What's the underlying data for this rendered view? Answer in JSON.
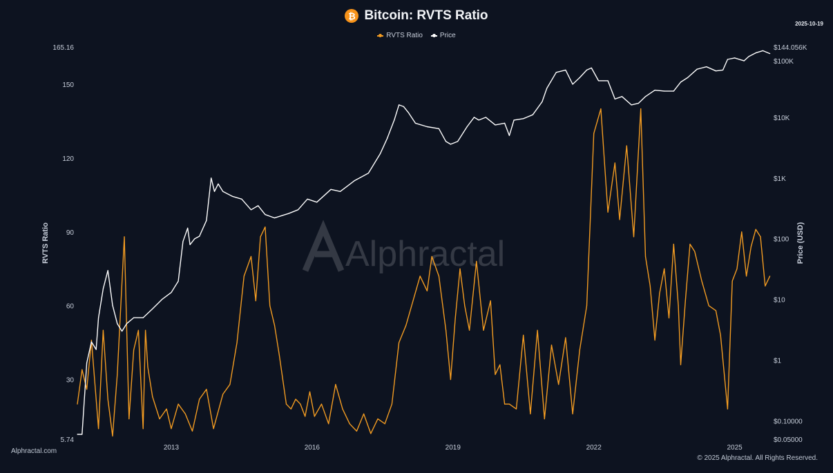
{
  "colors": {
    "background": "#0d1320",
    "rvts": "#f39c22",
    "price": "#ffffff",
    "btc_badge": "#f7931a"
  },
  "header": {
    "title": "Bitcoin: RVTS Ratio",
    "date": "2025-10-19",
    "btc_symbol": "₿"
  },
  "legend": [
    {
      "label": "RVTS Ratio"
    },
    {
      "label": "Price"
    }
  ],
  "watermark": "Alphractal",
  "footer": {
    "site": "Alphractal.com",
    "copyright": "© 2025 Alphractal. All Rights Reserved."
  },
  "chart_data": {
    "type": "line",
    "title": "Bitcoin: RVTS Ratio",
    "xlabel": "",
    "ylabel_left": "RVTS Ratio",
    "ylabel_right": "Price (USD)",
    "x_range": [
      2011.0,
      2025.8
    ],
    "x_ticks": [
      {
        "value": 2013,
        "label": "2013"
      },
      {
        "value": 2016,
        "label": "2016"
      },
      {
        "value": 2019,
        "label": "2019"
      },
      {
        "value": 2022,
        "label": "2022"
      },
      {
        "value": 2025,
        "label": "2025"
      }
    ],
    "y_left": {
      "range": [
        5.74,
        165.16
      ],
      "ticks": [
        {
          "value": 5.74,
          "label": "5.74"
        },
        {
          "value": 30,
          "label": "30"
        },
        {
          "value": 60,
          "label": "60"
        },
        {
          "value": 90,
          "label": "90"
        },
        {
          "value": 120,
          "label": "120"
        },
        {
          "value": 150,
          "label": "150"
        },
        {
          "value": 165.16,
          "label": "165.16"
        }
      ]
    },
    "y_right": {
      "scale": "log",
      "range": [
        0.05,
        144056
      ],
      "ticks": [
        {
          "value": 0.05,
          "label": "$0.05000"
        },
        {
          "value": 0.1,
          "label": "$0.10000"
        },
        {
          "value": 1,
          "label": "$1"
        },
        {
          "value": 10,
          "label": "$10"
        },
        {
          "value": 100,
          "label": "$100"
        },
        {
          "value": 1000,
          "label": "$1K"
        },
        {
          "value": 10000,
          "label": "$10K"
        },
        {
          "value": 100000,
          "label": "$100K"
        },
        {
          "value": 144056,
          "label": "$144.056K"
        }
      ]
    },
    "series": [
      {
        "name": "RVTS Ratio",
        "axis": "left",
        "x": [
          2011.0,
          2011.1,
          2011.2,
          2011.3,
          2011.45,
          2011.55,
          2011.65,
          2011.75,
          2011.85,
          2012.0,
          2012.1,
          2012.2,
          2012.3,
          2012.4,
          2012.45,
          2012.5,
          2012.6,
          2012.75,
          2012.9,
          2013.0,
          2013.15,
          2013.3,
          2013.45,
          2013.6,
          2013.75,
          2013.9,
          2014.1,
          2014.25,
          2014.4,
          2014.55,
          2014.7,
          2014.8,
          2014.9,
          2015.0,
          2015.1,
          2015.2,
          2015.3,
          2015.45,
          2015.55,
          2015.65,
          2015.75,
          2015.85,
          2015.95,
          2016.05,
          2016.2,
          2016.35,
          2016.5,
          2016.65,
          2016.8,
          2016.95,
          2017.1,
          2017.25,
          2017.4,
          2017.55,
          2017.7,
          2017.85,
          2018.0,
          2018.15,
          2018.3,
          2018.45,
          2018.55,
          2018.7,
          2018.85,
          2018.95,
          2019.05,
          2019.15,
          2019.25,
          2019.35,
          2019.5,
          2019.65,
          2019.8,
          2019.9,
          2020.0,
          2020.1,
          2020.2,
          2020.35,
          2020.5,
          2020.65,
          2020.8,
          2020.95,
          2021.1,
          2021.25,
          2021.4,
          2021.55,
          2021.7,
          2021.85,
          2022.0,
          2022.15,
          2022.3,
          2022.45,
          2022.55,
          2022.7,
          2022.85,
          2023.0,
          2023.1,
          2023.2,
          2023.3,
          2023.4,
          2023.5,
          2023.6,
          2023.7,
          2023.8,
          2023.85,
          2023.95,
          2024.05,
          2024.15,
          2024.3,
          2024.45,
          2024.6,
          2024.7,
          2024.85,
          2024.95,
          2025.05,
          2025.15,
          2025.25,
          2025.35,
          2025.45,
          2025.55,
          2025.65,
          2025.75
        ],
        "values": [
          20,
          34,
          26,
          46,
          10,
          50,
          22,
          7,
          32,
          88,
          14,
          42,
          50,
          10,
          50,
          35,
          23,
          14,
          18,
          10,
          20,
          16,
          9,
          22,
          26,
          10,
          24,
          28,
          45,
          72,
          80,
          62,
          88,
          92,
          60,
          52,
          40,
          20,
          18,
          22,
          20,
          15,
          25,
          15,
          20,
          12,
          28,
          18,
          12,
          9,
          16,
          8,
          14,
          12,
          20,
          45,
          52,
          62,
          72,
          66,
          80,
          72,
          50,
          30,
          55,
          75,
          60,
          50,
          78,
          50,
          62,
          32,
          36,
          20,
          20,
          18,
          48,
          16,
          50,
          14,
          44,
          28,
          47,
          16,
          42,
          60,
          130,
          140,
          98,
          118,
          95,
          125,
          88,
          140,
          80,
          68,
          46,
          65,
          75,
          55,
          85,
          60,
          36,
          62,
          85,
          82,
          70,
          60,
          58,
          48,
          18,
          70,
          75,
          90,
          72,
          84,
          91,
          88,
          68,
          72
        ]
      },
      {
        "name": "Price",
        "axis": "right",
        "x": [
          2011.0,
          2011.1,
          2011.2,
          2011.3,
          2011.4,
          2011.45,
          2011.55,
          2011.65,
          2011.75,
          2011.85,
          2011.95,
          2012.05,
          2012.2,
          2012.4,
          2012.6,
          2012.8,
          2013.0,
          2013.15,
          2013.25,
          2013.35,
          2013.4,
          2013.5,
          2013.6,
          2013.75,
          2013.85,
          2013.92,
          2014.0,
          2014.1,
          2014.3,
          2014.5,
          2014.7,
          2014.85,
          2015.0,
          2015.2,
          2015.5,
          2015.7,
          2015.9,
          2016.1,
          2016.4,
          2016.6,
          2016.9,
          2017.2,
          2017.45,
          2017.6,
          2017.75,
          2017.85,
          2017.95,
          2018.05,
          2018.2,
          2018.45,
          2018.7,
          2018.85,
          2018.95,
          2019.1,
          2019.3,
          2019.45,
          2019.55,
          2019.7,
          2019.9,
          2020.1,
          2020.2,
          2020.3,
          2020.5,
          2020.7,
          2020.9,
          2021.0,
          2021.2,
          2021.4,
          2021.55,
          2021.7,
          2021.85,
          2021.95,
          2022.1,
          2022.3,
          2022.45,
          2022.6,
          2022.8,
          2022.95,
          2023.1,
          2023.3,
          2023.5,
          2023.7,
          2023.85,
          2024.0,
          2024.2,
          2024.4,
          2024.6,
          2024.75,
          2024.85,
          2025.0,
          2025.2,
          2025.3,
          2025.45,
          2025.6,
          2025.75
        ],
        "values": [
          0.06,
          0.06,
          0.9,
          2,
          1.5,
          5,
          15,
          30,
          8,
          4,
          3,
          4,
          5,
          5,
          7,
          10,
          13,
          20,
          90,
          150,
          80,
          100,
          110,
          200,
          1000,
          600,
          800,
          600,
          500,
          450,
          300,
          350,
          250,
          220,
          260,
          300,
          450,
          400,
          650,
          600,
          900,
          1200,
          2500,
          4500,
          9000,
          16000,
          15000,
          12000,
          8000,
          7000,
          6500,
          4000,
          3600,
          4000,
          7000,
          10000,
          9000,
          10000,
          7500,
          8000,
          5000,
          9000,
          9500,
          11000,
          18000,
          30000,
          55000,
          60000,
          35000,
          45000,
          60000,
          65000,
          40000,
          40000,
          20000,
          22000,
          16000,
          17000,
          22000,
          28000,
          27000,
          27000,
          38000,
          45000,
          62000,
          68000,
          58000,
          60000,
          90000,
          95000,
          85000,
          100000,
          115000,
          125000,
          112000
        ]
      }
    ]
  }
}
